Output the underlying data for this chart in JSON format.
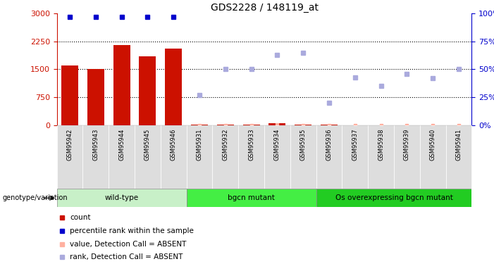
{
  "title": "GDS2228 / 148119_at",
  "samples": [
    "GSM95942",
    "GSM95943",
    "GSM95944",
    "GSM95945",
    "GSM95946",
    "GSM95931",
    "GSM95932",
    "GSM95933",
    "GSM95934",
    "GSM95935",
    "GSM95936",
    "GSM95937",
    "GSM95938",
    "GSM95939",
    "GSM95940",
    "GSM95941"
  ],
  "groups": [
    {
      "label": "wild-type",
      "start": 0,
      "end": 5,
      "color": "#c8f0c8"
    },
    {
      "label": "bgcn mutant",
      "start": 5,
      "end": 10,
      "color": "#44ee44"
    },
    {
      "label": "Os overexpressing bgcn mutant",
      "start": 10,
      "end": 16,
      "color": "#22cc22"
    }
  ],
  "bar_values": [
    1600,
    1500,
    2150,
    1850,
    2050,
    30,
    20,
    20,
    50,
    20,
    20,
    10,
    10,
    10,
    10,
    10
  ],
  "present_rank": [
    97,
    97,
    97,
    97,
    97,
    null,
    null,
    null,
    null,
    null,
    null,
    null,
    null,
    null,
    null,
    null
  ],
  "absent_value": [
    null,
    null,
    null,
    null,
    null,
    30,
    20,
    20,
    50,
    20,
    20,
    10,
    10,
    10,
    10,
    10
  ],
  "absent_rank": [
    null,
    null,
    null,
    null,
    null,
    27,
    50,
    50,
    63,
    65,
    20,
    43,
    35,
    46,
    42,
    50
  ],
  "ylim_left": [
    0,
    3000
  ],
  "ylim_right": [
    0,
    100
  ],
  "yticks_left": [
    0,
    750,
    1500,
    2250,
    3000
  ],
  "yticks_right": [
    0,
    25,
    50,
    75,
    100
  ],
  "bar_color": "#CC1100",
  "present_rank_color": "#0000CC",
  "absent_value_color": "#FFB0A0",
  "absent_rank_color": "#AAAADD",
  "legend_items": [
    {
      "label": "count",
      "color": "#CC1100"
    },
    {
      "label": "percentile rank within the sample",
      "color": "#0000CC"
    },
    {
      "label": "value, Detection Call = ABSENT",
      "color": "#FFB0A0"
    },
    {
      "label": "rank, Detection Call = ABSENT",
      "color": "#AAAADD"
    }
  ]
}
